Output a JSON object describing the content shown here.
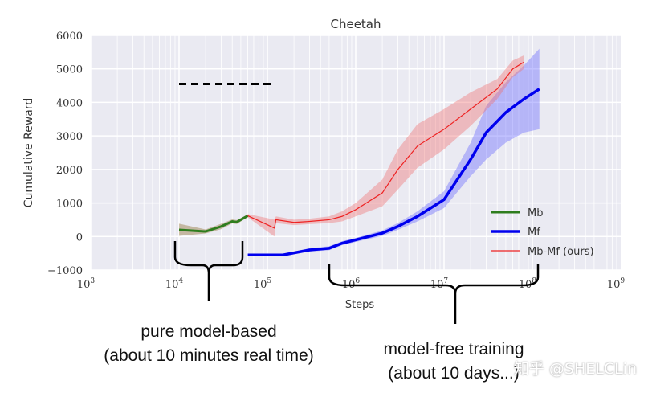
{
  "chart_data": {
    "type": "line",
    "title": "Cheetah",
    "xlabel": "Steps",
    "ylabel": "Cumulative Reward",
    "xscale": "log",
    "xlim": [
      1000,
      1000000000
    ],
    "ylim": [
      -1000,
      6000
    ],
    "xticks": [
      "10^3",
      "10^4",
      "10^5",
      "10^6",
      "10^7",
      "10^8",
      "10^9"
    ],
    "yticks": [
      "6000",
      "5000",
      "4000",
      "3000",
      "2000",
      "1000",
      "0",
      "−1000"
    ],
    "grid": true,
    "background": "#eaeaf2",
    "legend": "bottom-right",
    "series": [
      {
        "name": "Mb",
        "color": "#2e7d1e",
        "x": [
          10000,
          20000,
          30000,
          40000,
          45000,
          60000
        ],
        "y": [
          200,
          150,
          300,
          450,
          430,
          620
        ],
        "band": [
          180,
          60,
          80,
          60,
          60,
          40
        ]
      },
      {
        "name": "Mf",
        "color": "#0000ee",
        "x": [
          60000,
          150000,
          300000,
          500000,
          700000,
          1000000,
          2000000,
          3000000,
          5000000,
          10000000,
          20000000,
          30000000,
          50000000,
          80000000,
          120000000
        ],
        "y": [
          -550,
          -550,
          -400,
          -350,
          -200,
          -100,
          100,
          300,
          600,
          1100,
          2300,
          3100,
          3700,
          4100,
          4400
        ],
        "band": [
          40,
          40,
          50,
          60,
          60,
          60,
          80,
          100,
          150,
          250,
          500,
          800,
          900,
          1000,
          1200
        ]
      },
      {
        "name": "Mb-Mf (ours)",
        "color": "#ee2222",
        "x": [
          60000,
          100000,
          120000,
          125000,
          200000,
          300000,
          500000,
          700000,
          1000000,
          2000000,
          3000000,
          5000000,
          10000000,
          20000000,
          40000000,
          60000000,
          80000000
        ],
        "y": [
          620,
          350,
          250,
          500,
          420,
          450,
          500,
          600,
          800,
          1300,
          2000,
          2700,
          3200,
          3800,
          4400,
          5000,
          5200
        ],
        "band": [
          50,
          200,
          250,
          100,
          80,
          80,
          100,
          150,
          200,
          400,
          600,
          650,
          600,
          500,
          300,
          250,
          200
        ]
      }
    ],
    "reference_line": {
      "y": 4550,
      "x": [
        10000,
        120000
      ],
      "style": "dashed",
      "color": "#000000"
    }
  },
  "annotations": {
    "left": "pure model-based\n(about 10 minutes real time)",
    "right": "model-free training\n(about 10 days...)"
  },
  "watermark": "知乎 @SHELCLin"
}
